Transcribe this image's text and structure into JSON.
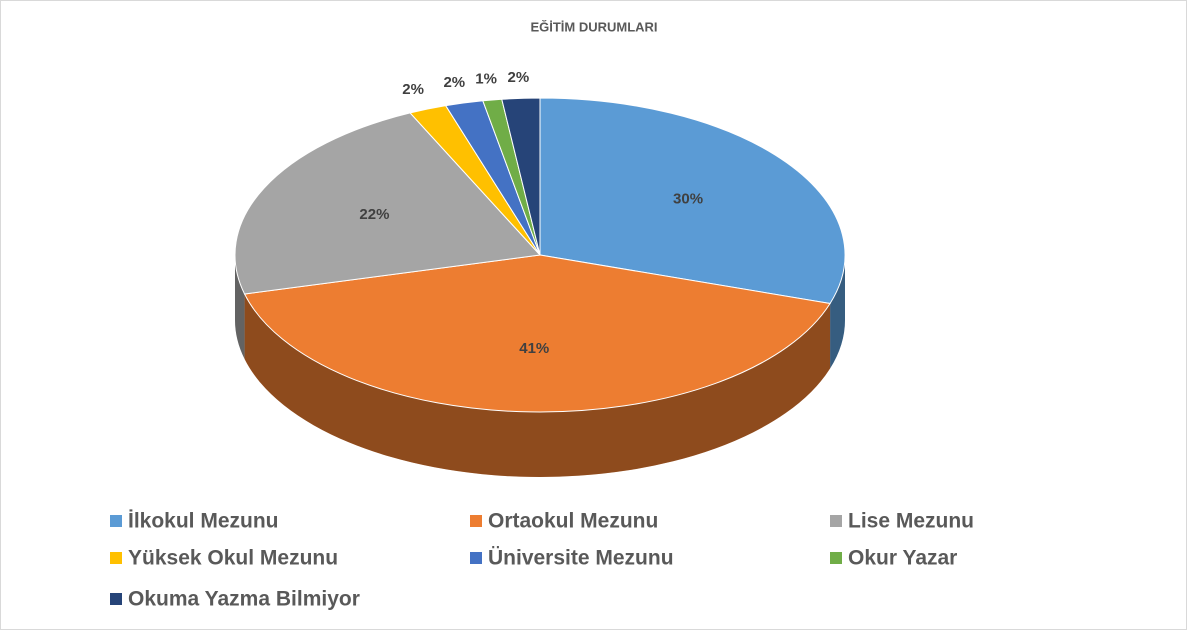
{
  "chart_data": {
    "type": "pie",
    "title": "EĞİTİM DURUMLARI",
    "categories": [
      "İlkokul Mezunu",
      "Ortaokul Mezunu",
      "Lise Mezunu",
      "Yüksek  Okul Mezunu",
      "Üniversite Mezunu",
      "Okur Yazar",
      "Okuma Yazma Bilmiyor"
    ],
    "values": [
      30,
      41,
      22,
      2,
      2,
      1,
      2
    ],
    "value_labels": [
      "30%",
      "41%",
      "22%",
      "2%",
      "2%",
      "1%",
      "2%"
    ],
    "colors": [
      "#5b9bd5",
      "#ed7d31",
      "#a5a5a5",
      "#ffc000",
      "#4472c4",
      "#70ad47",
      "#264478"
    ],
    "legend": "bottom"
  }
}
